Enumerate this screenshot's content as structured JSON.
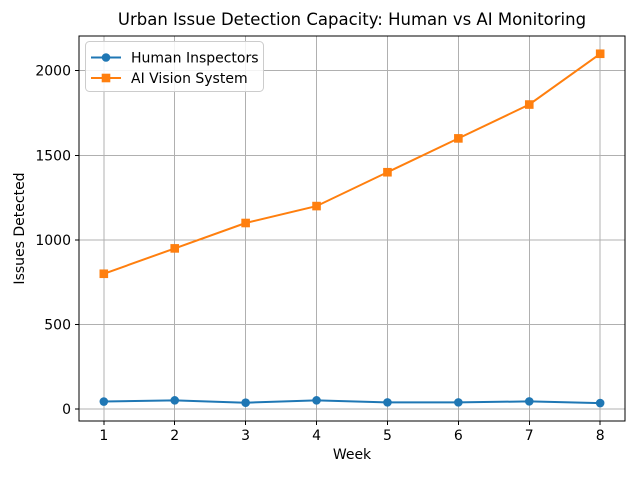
{
  "chart_data": {
    "type": "line",
    "title": "Urban Issue Detection Capacity: Human vs AI Monitoring",
    "xlabel": "Week",
    "ylabel": "Issues Detected",
    "x": [
      1,
      2,
      3,
      4,
      5,
      6,
      7,
      8
    ],
    "series": [
      {
        "name": "Human Inspectors",
        "color": "#1f77b4",
        "marker": "circle",
        "values": [
          45,
          52,
          38,
          52,
          40,
          40,
          46,
          36
        ]
      },
      {
        "name": "AI Vision System",
        "color": "#ff7f0e",
        "marker": "square",
        "values": [
          800,
          950,
          1100,
          1200,
          1400,
          1600,
          1800,
          2100
        ]
      }
    ],
    "xticks": [
      1,
      2,
      3,
      4,
      5,
      6,
      7,
      8
    ],
    "yticks": [
      0,
      500,
      1000,
      1500,
      2000
    ],
    "xlim": [
      0.65,
      8.35
    ],
    "ylim": [
      -70,
      2205
    ],
    "grid": true,
    "legend_position": "upper left",
    "colors": {
      "grid": "#b0b0b0",
      "spine": "#000000",
      "text": "#000000",
      "legend_border": "#cccccc",
      "background": "#ffffff"
    }
  }
}
